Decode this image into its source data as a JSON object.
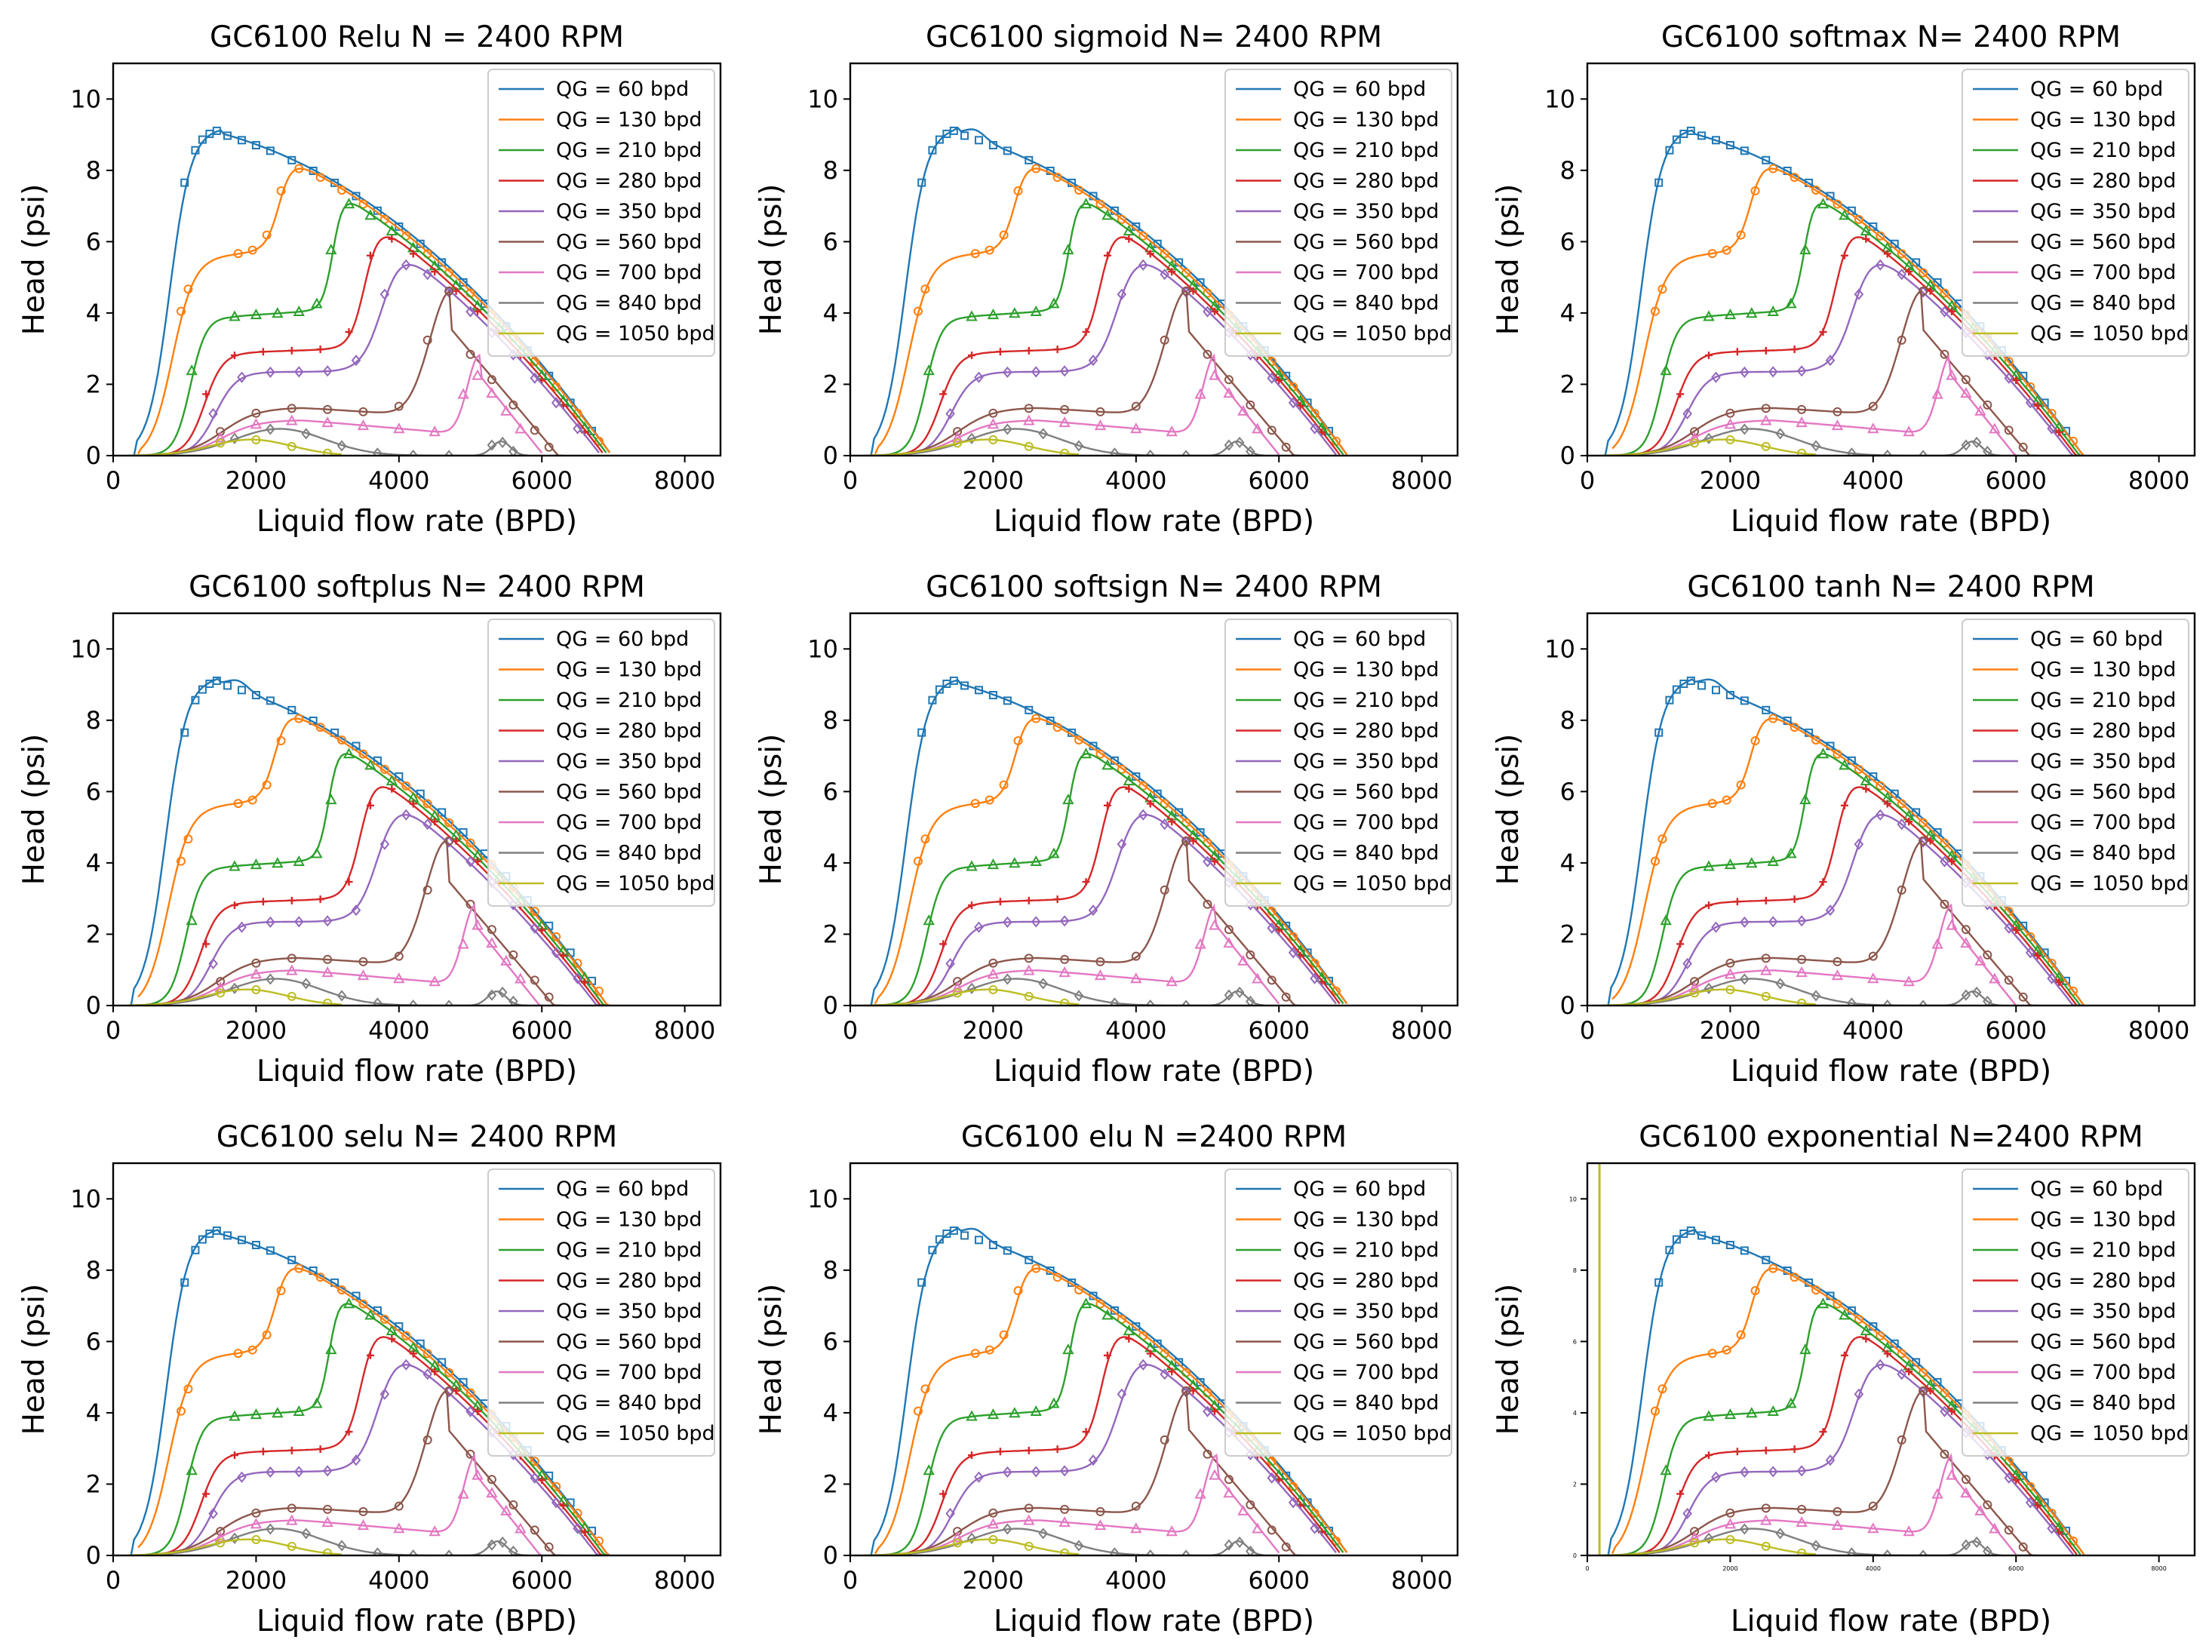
{
  "figure": {
    "series_colors": [
      "#1f77b4",
      "#ff7f0e",
      "#2ca02c",
      "#d62728",
      "#9467bd",
      "#8c564b",
      "#e377c2",
      "#7f7f7f",
      "#bcbd22"
    ]
  },
  "chart_data": [
    {
      "type": "line",
      "title": "GC6100 Relu N = 2400 RPM",
      "xlabel": "Liquid flow rate (BPD)",
      "ylabel": "Head (psi)",
      "xlim": [
        0,
        8500
      ],
      "ylim": [
        0,
        11
      ],
      "xticks": [
        "0",
        "2000",
        "4000",
        "6000",
        "8000"
      ],
      "yticks": [
        "0",
        "2",
        "4",
        "6",
        "8",
        "10"
      ],
      "legend_position": "top-right",
      "grid": false,
      "series": [
        {
          "name": "QG = 60 bpd",
          "color": "#1f77b4"
        },
        {
          "name": "QG = 130 bpd",
          "color": "#ff7f0e"
        },
        {
          "name": "QG = 210 bpd",
          "color": "#2ca02c"
        },
        {
          "name": "QG = 280 bpd",
          "color": "#d62728"
        },
        {
          "name": "QG = 350 bpd",
          "color": "#9467bd"
        },
        {
          "name": "QG = 560 bpd",
          "color": "#8c564b"
        },
        {
          "name": "QG = 700 bpd",
          "color": "#e377c2"
        },
        {
          "name": "QG = 840 bpd",
          "color": "#7f7f7f"
        },
        {
          "name": "QG = 1050 bpd",
          "color": "#bcbd22"
        }
      ]
    },
    {
      "type": "line",
      "title": "GC6100 sigmoid N= 2400 RPM",
      "xlabel": "Liquid flow rate (BPD)",
      "ylabel": "Head (psi)",
      "xlim": [
        0,
        8500
      ],
      "ylim": [
        0,
        11
      ],
      "xticks": [
        "0",
        "2000",
        "4000",
        "6000",
        "8000"
      ],
      "yticks": [
        "0",
        "2",
        "4",
        "6",
        "8",
        "10"
      ],
      "legend_position": "top-right",
      "grid": false,
      "series": [
        {
          "name": "QG = 60 bpd",
          "color": "#1f77b4"
        },
        {
          "name": "QG = 130 bpd",
          "color": "#ff7f0e"
        },
        {
          "name": "QG = 210 bpd",
          "color": "#2ca02c"
        },
        {
          "name": "QG = 280 bpd",
          "color": "#d62728"
        },
        {
          "name": "QG = 350 bpd",
          "color": "#9467bd"
        },
        {
          "name": "QG = 560 bpd",
          "color": "#8c564b"
        },
        {
          "name": "QG = 700 bpd",
          "color": "#e377c2"
        },
        {
          "name": "QG = 840 bpd",
          "color": "#7f7f7f"
        },
        {
          "name": "QG = 1050 bpd",
          "color": "#bcbd22"
        }
      ]
    },
    {
      "type": "line",
      "title": "GC6100 softmax N= 2400 RPM",
      "xlabel": "Liquid flow rate (BPD)",
      "ylabel": "Head (psi)",
      "xlim": [
        0,
        8500
      ],
      "ylim": [
        0,
        11
      ],
      "xticks": [
        "0",
        "2000",
        "4000",
        "6000",
        "8000"
      ],
      "yticks": [
        "0",
        "2",
        "4",
        "6",
        "8",
        "10"
      ],
      "legend_position": "top-right",
      "grid": false,
      "series": [
        {
          "name": "QG = 60 bpd",
          "color": "#1f77b4"
        },
        {
          "name": "QG = 130 bpd",
          "color": "#ff7f0e"
        },
        {
          "name": "QG = 210 bpd",
          "color": "#2ca02c"
        },
        {
          "name": "QG = 280 bpd",
          "color": "#d62728"
        },
        {
          "name": "QG = 350 bpd",
          "color": "#9467bd"
        },
        {
          "name": "QG = 560 bpd",
          "color": "#8c564b"
        },
        {
          "name": "QG = 700 bpd",
          "color": "#e377c2"
        },
        {
          "name": "QG = 840 bpd",
          "color": "#7f7f7f"
        },
        {
          "name": "QG = 1050 bpd",
          "color": "#bcbd22"
        }
      ]
    },
    {
      "type": "line",
      "title": "GC6100 softplus N= 2400 RPM",
      "xlabel": "Liquid flow rate (BPD)",
      "ylabel": "Head (psi)",
      "xlim": [
        0,
        8500
      ],
      "ylim": [
        0,
        11
      ],
      "xticks": [
        "0",
        "2000",
        "4000",
        "6000",
        "8000"
      ],
      "yticks": [
        "0",
        "2",
        "4",
        "6",
        "8",
        "10"
      ],
      "legend_position": "top-right",
      "grid": false,
      "series": [
        {
          "name": "QG = 60 bpd",
          "color": "#1f77b4"
        },
        {
          "name": "QG = 130 bpd",
          "color": "#ff7f0e"
        },
        {
          "name": "QG = 210 bpd",
          "color": "#2ca02c"
        },
        {
          "name": "QG = 280 bpd",
          "color": "#d62728"
        },
        {
          "name": "QG = 350 bpd",
          "color": "#9467bd"
        },
        {
          "name": "QG = 560 bpd",
          "color": "#8c564b"
        },
        {
          "name": "QG = 700 bpd",
          "color": "#e377c2"
        },
        {
          "name": "QG = 840 bpd",
          "color": "#7f7f7f"
        },
        {
          "name": "QG = 1050 bpd",
          "color": "#bcbd22"
        }
      ]
    },
    {
      "type": "line",
      "title": "GC6100 softsign N= 2400 RPM",
      "xlabel": "Liquid flow rate (BPD)",
      "ylabel": "Head (psi)",
      "xlim": [
        0,
        8500
      ],
      "ylim": [
        0,
        11
      ],
      "xticks": [
        "0",
        "2000",
        "4000",
        "6000",
        "8000"
      ],
      "yticks": [
        "0",
        "2",
        "4",
        "6",
        "8",
        "10"
      ],
      "legend_position": "top-right",
      "grid": false,
      "series": [
        {
          "name": "QG = 60 bpd",
          "color": "#1f77b4"
        },
        {
          "name": "QG = 130 bpd",
          "color": "#ff7f0e"
        },
        {
          "name": "QG = 210 bpd",
          "color": "#2ca02c"
        },
        {
          "name": "QG = 280 bpd",
          "color": "#d62728"
        },
        {
          "name": "QG = 350 bpd",
          "color": "#9467bd"
        },
        {
          "name": "QG = 560 bpd",
          "color": "#8c564b"
        },
        {
          "name": "QG = 700 bpd",
          "color": "#e377c2"
        },
        {
          "name": "QG = 840 bpd",
          "color": "#7f7f7f"
        },
        {
          "name": "QG = 1050 bpd",
          "color": "#bcbd22"
        }
      ]
    },
    {
      "type": "line",
      "title": "GC6100 tanh N= 2400 RPM",
      "xlabel": "Liquid flow rate (BPD)",
      "ylabel": "Head (psi)",
      "xlim": [
        0,
        8500
      ],
      "ylim": [
        0,
        11
      ],
      "xticks": [
        "0",
        "2000",
        "4000",
        "6000",
        "8000"
      ],
      "yticks": [
        "0",
        "2",
        "4",
        "6",
        "8",
        "10"
      ],
      "legend_position": "top-right",
      "grid": false,
      "series": [
        {
          "name": "QG = 60 bpd",
          "color": "#1f77b4"
        },
        {
          "name": "QG = 130 bpd",
          "color": "#ff7f0e"
        },
        {
          "name": "QG = 210 bpd",
          "color": "#2ca02c"
        },
        {
          "name": "QG = 280 bpd",
          "color": "#d62728"
        },
        {
          "name": "QG = 350 bpd",
          "color": "#9467bd"
        },
        {
          "name": "QG = 560 bpd",
          "color": "#8c564b"
        },
        {
          "name": "QG = 700 bpd",
          "color": "#e377c2"
        },
        {
          "name": "QG = 840 bpd",
          "color": "#7f7f7f"
        },
        {
          "name": "QG = 1050 bpd",
          "color": "#bcbd22"
        }
      ]
    },
    {
      "type": "line",
      "title": "GC6100 selu N= 2400 RPM",
      "xlabel": "Liquid flow rate (BPD)",
      "ylabel": "Head (psi)",
      "xlim": [
        0,
        8500
      ],
      "ylim": [
        0,
        11
      ],
      "xticks": [
        "0",
        "2000",
        "4000",
        "6000",
        "8000"
      ],
      "yticks": [
        "0",
        "2",
        "4",
        "6",
        "8",
        "10"
      ],
      "legend_position": "top-right",
      "grid": false,
      "series": [
        {
          "name": "QG = 60 bpd",
          "color": "#1f77b4"
        },
        {
          "name": "QG = 130 bpd",
          "color": "#ff7f0e"
        },
        {
          "name": "QG = 210 bpd",
          "color": "#2ca02c"
        },
        {
          "name": "QG = 280 bpd",
          "color": "#d62728"
        },
        {
          "name": "QG = 350 bpd",
          "color": "#9467bd"
        },
        {
          "name": "QG = 560 bpd",
          "color": "#8c564b"
        },
        {
          "name": "QG = 700 bpd",
          "color": "#e377c2"
        },
        {
          "name": "QG = 840 bpd",
          "color": "#7f7f7f"
        },
        {
          "name": "QG = 1050 bpd",
          "color": "#bcbd22"
        }
      ]
    },
    {
      "type": "line",
      "title": "GC6100 elu N =2400 RPM",
      "xlabel": "Liquid flow rate (BPD)",
      "ylabel": "Head (psi)",
      "xlim": [
        0,
        8500
      ],
      "ylim": [
        0,
        11
      ],
      "xticks": [
        "0",
        "2000",
        "4000",
        "6000",
        "8000"
      ],
      "yticks": [
        "0",
        "2",
        "4",
        "6",
        "8",
        "10"
      ],
      "legend_position": "top-right",
      "grid": false,
      "series": [
        {
          "name": "QG = 60 bpd",
          "color": "#1f77b4"
        },
        {
          "name": "QG = 130 bpd",
          "color": "#ff7f0e"
        },
        {
          "name": "QG = 210 bpd",
          "color": "#2ca02c"
        },
        {
          "name": "QG = 280 bpd",
          "color": "#d62728"
        },
        {
          "name": "QG = 350 bpd",
          "color": "#9467bd"
        },
        {
          "name": "QG = 560 bpd",
          "color": "#8c564b"
        },
        {
          "name": "QG = 700 bpd",
          "color": "#e377c2"
        },
        {
          "name": "QG = 840 bpd",
          "color": "#7f7f7f"
        },
        {
          "name": "QG = 1050 bpd",
          "color": "#bcbd22"
        }
      ]
    },
    {
      "type": "line",
      "title": "GC6100 exponential N=2400 RPM",
      "xlabel": "Liquid flow rate (BPD)",
      "ylabel": "Head (psi)",
      "xlim": [
        0,
        8500
      ],
      "ylim": [
        0,
        11
      ],
      "xticks": [
        "0",
        "2000",
        "4000",
        "6000",
        "8000"
      ],
      "yticks": [
        "0",
        "2",
        "4",
        "6",
        "8",
        "10"
      ],
      "tick_labels_small": true,
      "legend_position": "top-right",
      "grid": false,
      "series": [
        {
          "name": "QG = 60 bpd",
          "color": "#1f77b4"
        },
        {
          "name": "QG = 130 bpd",
          "color": "#ff7f0e"
        },
        {
          "name": "QG = 210 bpd",
          "color": "#2ca02c"
        },
        {
          "name": "QG = 280 bpd",
          "color": "#d62728"
        },
        {
          "name": "QG = 350 bpd",
          "color": "#9467bd"
        },
        {
          "name": "QG = 560 bpd",
          "color": "#8c564b"
        },
        {
          "name": "QG = 700 bpd",
          "color": "#e377c2"
        },
        {
          "name": "QG = 840 bpd",
          "color": "#7f7f7f"
        },
        {
          "name": "QG = 1050 bpd",
          "color": "#bcbd22"
        }
      ]
    }
  ]
}
